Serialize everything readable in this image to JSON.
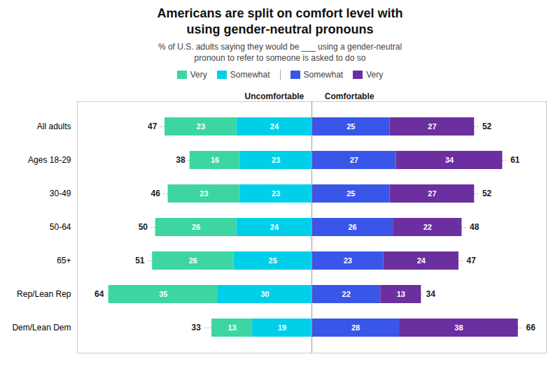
{
  "chart_data": {
    "type": "bar",
    "orientation": "horizontal",
    "stacked": true,
    "data_labels": true,
    "tick_labels": "y",
    "grid": false,
    "title": "Americans are split on comfort level with\nusing gender-neutral pronouns",
    "subtitle": "% of U.S. adults saying they would be ___ using a gender-neutral\npronoun to refer to someone is asked to do so",
    "categories": [
      "All adults",
      "Ages 18-29",
      "30-49",
      "50-64",
      "65+",
      "Rep/Lean Rep",
      "Dem/Lean Dem"
    ],
    "xlim": [
      -75,
      75
    ],
    "groups": [
      {
        "name": "Uncomfortable",
        "totals": [
          47,
          38,
          46,
          50,
          51,
          64,
          33
        ],
        "series": [
          {
            "name": "Very",
            "color": "#3DD6A3",
            "values": [
              23,
              16,
              23,
              26,
              26,
              35,
              13
            ]
          },
          {
            "name": "Somewhat",
            "color": "#00CFEA",
            "values": [
              24,
              23,
              23,
              24,
              25,
              30,
              19
            ]
          }
        ]
      },
      {
        "name": "Comfortable",
        "totals": [
          52,
          61,
          52,
          48,
          47,
          34,
          66
        ],
        "series": [
          {
            "name": "Somewhat",
            "color": "#3A56E8",
            "values": [
              25,
              27,
              25,
              26,
              23,
              22,
              28
            ]
          },
          {
            "name": "Very",
            "color": "#6B2FA0",
            "values": [
              27,
              34,
              27,
              22,
              24,
              13,
              38
            ]
          }
        ]
      }
    ]
  }
}
